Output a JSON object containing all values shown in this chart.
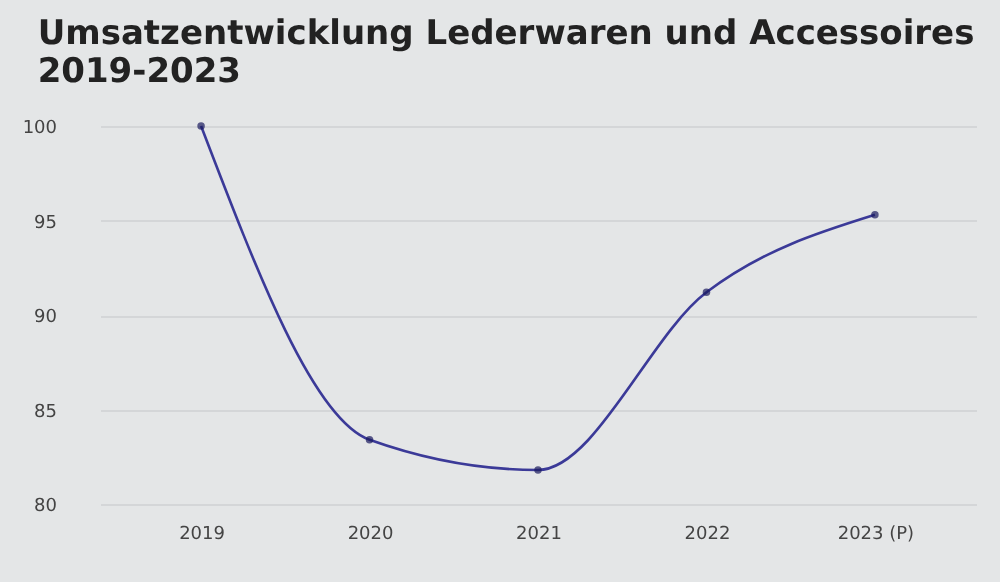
{
  "chart_data": {
    "type": "line",
    "title": [
      "Umsatzentwicklung Lederwaren und Accessoires",
      "2019-2023"
    ],
    "categories": [
      "2019",
      "2020",
      "2021",
      "2022",
      "2023 (P)"
    ],
    "series": [
      {
        "color": "#3b3a98",
        "values": [
          100,
          83.4,
          81.8,
          91.2,
          95.3
        ]
      }
    ],
    "ylim": [
      80,
      100
    ],
    "yticks": [
      80,
      85,
      90,
      95,
      100
    ],
    "grid": "y",
    "marker": "circle",
    "line_style": "solid",
    "legend": false
  }
}
